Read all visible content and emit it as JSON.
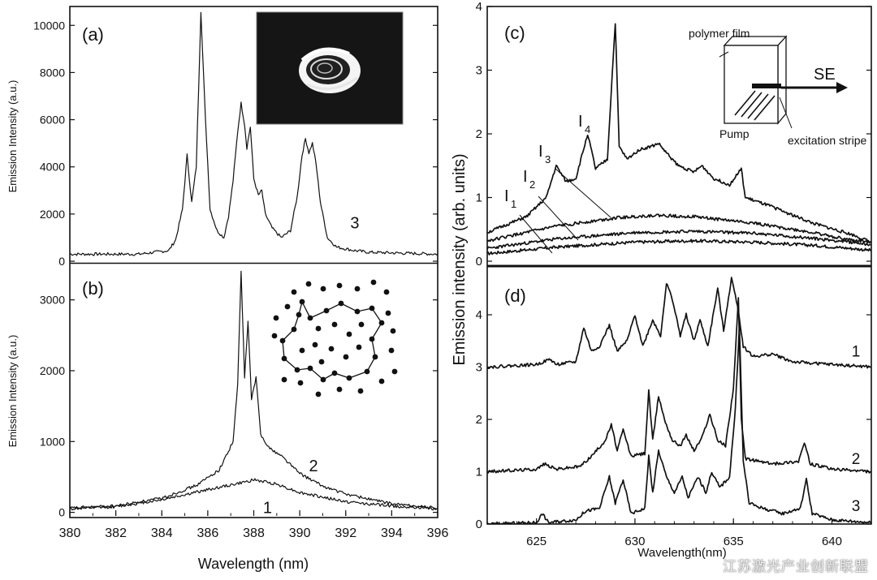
{
  "watermark": "江苏激光产业创新联盟",
  "chart_data": [
    {
      "panel": "(a)",
      "type": "line",
      "ylabel": "Emission Intensity (a.u.)",
      "xlabel": "",
      "xlim": [
        380,
        396
      ],
      "ylim": [
        0,
        10800
      ],
      "yticks": [
        0,
        2000,
        4000,
        6000,
        8000,
        10000
      ],
      "curve_labels": [
        {
          "text": "3",
          "x": 392.2,
          "y": 1400
        }
      ],
      "inset": "photo of ring-shaped emission spot",
      "series": [
        {
          "name": "3",
          "points": [
            [
              380,
              300
            ],
            [
              383,
              300
            ],
            [
              384.3,
              450
            ],
            [
              384.6,
              900
            ],
            [
              384.9,
              2200
            ],
            [
              385.1,
              4500
            ],
            [
              385.3,
              2500
            ],
            [
              385.5,
              4000
            ],
            [
              385.7,
              10600
            ],
            [
              385.9,
              6000
            ],
            [
              386.1,
              2200
            ],
            [
              386.4,
              1300
            ],
            [
              386.7,
              1000
            ],
            [
              386.9,
              1900
            ],
            [
              387.1,
              3400
            ],
            [
              387.3,
              5500
            ],
            [
              387.45,
              6700
            ],
            [
              387.6,
              5800
            ],
            [
              387.7,
              4800
            ],
            [
              387.85,
              5700
            ],
            [
              388.0,
              3500
            ],
            [
              388.2,
              2800
            ],
            [
              388.35,
              3000
            ],
            [
              388.5,
              2000
            ],
            [
              388.8,
              1400
            ],
            [
              389.2,
              1000
            ],
            [
              389.6,
              1300
            ],
            [
              389.9,
              2800
            ],
            [
              390.1,
              4500
            ],
            [
              390.25,
              5200
            ],
            [
              390.4,
              4600
            ],
            [
              390.55,
              5000
            ],
            [
              390.7,
              4200
            ],
            [
              390.9,
              2500
            ],
            [
              391.2,
              1000
            ],
            [
              391.6,
              600
            ],
            [
              392.4,
              450
            ],
            [
              393,
              380
            ],
            [
              396,
              300
            ]
          ]
        }
      ]
    },
    {
      "panel": "(b)",
      "type": "line",
      "ylabel": "Emission Intensity (a.u.)",
      "xlabel": "Wavelength (nm)",
      "xlim": [
        380,
        396
      ],
      "ylim": [
        -50,
        3500
      ],
      "xticks": [
        380,
        382,
        384,
        386,
        388,
        390,
        392,
        394,
        396
      ],
      "yticks": [
        0,
        1000,
        2000,
        3000
      ],
      "curve_labels": [
        {
          "text": "2",
          "x": 390.4,
          "y": 580
        },
        {
          "text": "1",
          "x": 388.4,
          "y": -10
        }
      ],
      "inset": "dotted random scatterer pattern with closed loop path",
      "series": [
        {
          "name": "1",
          "points": [
            [
              380,
              50
            ],
            [
              382,
              80
            ],
            [
              384,
              180
            ],
            [
              386,
              320
            ],
            [
              387.5,
              420
            ],
            [
              388,
              460
            ],
            [
              389,
              400
            ],
            [
              390,
              280
            ],
            [
              392,
              150
            ],
            [
              394,
              90
            ],
            [
              396,
              50
            ]
          ]
        },
        {
          "name": "2",
          "points": [
            [
              380,
              60
            ],
            [
              382,
              90
            ],
            [
              384,
              200
            ],
            [
              385.5,
              380
            ],
            [
              386.5,
              600
            ],
            [
              387.1,
              1000
            ],
            [
              387.3,
              1800
            ],
            [
              387.45,
              3400
            ],
            [
              387.6,
              1900
            ],
            [
              387.75,
              2700
            ],
            [
              387.9,
              1600
            ],
            [
              388.1,
              1900
            ],
            [
              388.3,
              1100
            ],
            [
              388.7,
              900
            ],
            [
              389.2,
              800
            ],
            [
              390,
              550
            ],
            [
              391,
              370
            ],
            [
              392,
              260
            ],
            [
              394,
              120
            ],
            [
              396,
              60
            ]
          ]
        }
      ]
    },
    {
      "panel": "(c)",
      "type": "line",
      "ylabel": "Emission intensity (arb. units)",
      "xlabel": "",
      "xlim": [
        622.5,
        642
      ],
      "ylim": [
        0,
        4
      ],
      "yticks": [
        0,
        1,
        2,
        3,
        4
      ],
      "inset_labels": {
        "film": "polymer film",
        "pump": "Pump",
        "stripe": "excitation stripe",
        "se": "SE"
      },
      "series": [
        {
          "name": "I1",
          "points": [
            [
              622.5,
              0.12
            ],
            [
              626,
              0.22
            ],
            [
              630,
              0.3
            ],
            [
              633,
              0.32
            ],
            [
              636,
              0.3
            ],
            [
              639,
              0.25
            ],
            [
              641,
              0.2
            ],
            [
              642,
              0.17
            ]
          ]
        },
        {
          "name": "I2",
          "points": [
            [
              622.5,
              0.2
            ],
            [
              626,
              0.35
            ],
            [
              630,
              0.45
            ],
            [
              633,
              0.47
            ],
            [
              636,
              0.44
            ],
            [
              639,
              0.36
            ],
            [
              641,
              0.3
            ],
            [
              642,
              0.26
            ]
          ]
        },
        {
          "name": "I3",
          "points": [
            [
              622.5,
              0.32
            ],
            [
              626,
              0.55
            ],
            [
              629,
              0.68
            ],
            [
              631,
              0.72
            ],
            [
              633,
              0.7
            ],
            [
              636,
              0.6
            ],
            [
              639,
              0.45
            ],
            [
              641,
              0.33
            ],
            [
              642,
              0.3
            ]
          ]
        },
        {
          "name": "I4",
          "points": [
            [
              622.5,
              0.45
            ],
            [
              624.5,
              0.7
            ],
            [
              625.5,
              1.0
            ],
            [
              626,
              1.5
            ],
            [
              626.5,
              1.25
            ],
            [
              627,
              1.3
            ],
            [
              627.6,
              2.0
            ],
            [
              628,
              1.45
            ],
            [
              628.6,
              1.6
            ],
            [
              629.0,
              3.75
            ],
            [
              629.2,
              1.8
            ],
            [
              629.6,
              1.6
            ],
            [
              630.2,
              1.75
            ],
            [
              630.8,
              1.8
            ],
            [
              631.2,
              1.85
            ],
            [
              631.6,
              1.7
            ],
            [
              632.2,
              1.5
            ],
            [
              633,
              1.4
            ],
            [
              633.4,
              1.5
            ],
            [
              634,
              1.3
            ],
            [
              634.8,
              1.2
            ],
            [
              635.4,
              1.45
            ],
            [
              635.6,
              1.0
            ],
            [
              637,
              0.85
            ],
            [
              639,
              0.6
            ],
            [
              641,
              0.42
            ],
            [
              642,
              0.3
            ]
          ]
        }
      ]
    },
    {
      "panel": "(d)",
      "type": "line",
      "ylabel": "Emission intensity (arb. units)",
      "xlabel": "Wavelength(nm)",
      "xlim": [
        622.5,
        642
      ],
      "ylim": [
        0,
        4.9
      ],
      "xticks": [
        625,
        630,
        635,
        640
      ],
      "yticks": [
        0,
        1,
        2,
        3,
        4
      ],
      "curve_labels": [
        {
          "text": "1",
          "x": 641,
          "y": 3.2
        },
        {
          "text": "2",
          "x": 641,
          "y": 1.15
        },
        {
          "text": "3",
          "x": 641,
          "y": 0.25
        }
      ],
      "series": [
        {
          "name": "1",
          "points": [
            [
              622.5,
              3.0
            ],
            [
              625,
              3.05
            ],
            [
              625.7,
              3.15
            ],
            [
              626,
              3.05
            ],
            [
              627,
              3.1
            ],
            [
              627.4,
              3.75
            ],
            [
              627.8,
              3.3
            ],
            [
              628.2,
              3.4
            ],
            [
              628.7,
              3.8
            ],
            [
              629.1,
              3.3
            ],
            [
              629.6,
              3.5
            ],
            [
              630,
              4.0
            ],
            [
              630.4,
              3.4
            ],
            [
              630.9,
              3.9
            ],
            [
              631.3,
              3.6
            ],
            [
              631.6,
              4.6
            ],
            [
              631.9,
              4.3
            ],
            [
              632.3,
              3.6
            ],
            [
              632.6,
              4.0
            ],
            [
              633,
              3.5
            ],
            [
              633.3,
              3.9
            ],
            [
              633.7,
              3.4
            ],
            [
              634.2,
              4.5
            ],
            [
              634.5,
              3.7
            ],
            [
              634.9,
              4.7
            ],
            [
              635.2,
              4.2
            ],
            [
              635.5,
              3.4
            ],
            [
              636,
              3.2
            ],
            [
              637,
              3.25
            ],
            [
              638,
              3.1
            ],
            [
              640,
              3.05
            ],
            [
              642,
              3.0
            ]
          ]
        },
        {
          "name": "2",
          "points": [
            [
              622.5,
              1.0
            ],
            [
              625,
              1.05
            ],
            [
              625.4,
              1.15
            ],
            [
              626,
              1.05
            ],
            [
              627.2,
              1.1
            ],
            [
              627.8,
              1.3
            ],
            [
              628.5,
              1.6
            ],
            [
              628.8,
              1.9
            ],
            [
              629.1,
              1.4
            ],
            [
              629.4,
              1.8
            ],
            [
              629.8,
              1.3
            ],
            [
              630.5,
              1.35
            ],
            [
              630.7,
              2.55
            ],
            [
              630.9,
              1.6
            ],
            [
              631.2,
              2.45
            ],
            [
              631.5,
              2.0
            ],
            [
              631.9,
              1.6
            ],
            [
              632.3,
              1.5
            ],
            [
              632.6,
              1.7
            ],
            [
              633,
              1.4
            ],
            [
              633.4,
              1.65
            ],
            [
              633.8,
              2.1
            ],
            [
              634.2,
              1.6
            ],
            [
              634.6,
              1.5
            ],
            [
              635.0,
              2.6
            ],
            [
              635.25,
              4.3
            ],
            [
              635.4,
              2.0
            ],
            [
              635.6,
              1.25
            ],
            [
              636.3,
              1.2
            ],
            [
              637,
              1.15
            ],
            [
              638.3,
              1.2
            ],
            [
              638.6,
              1.55
            ],
            [
              638.9,
              1.15
            ],
            [
              640,
              1.05
            ],
            [
              642,
              1.0
            ]
          ]
        },
        {
          "name": "3",
          "points": [
            [
              622.5,
              0.0
            ],
            [
              625,
              0.03
            ],
            [
              625.3,
              0.2
            ],
            [
              625.6,
              0.03
            ],
            [
              627,
              0.08
            ],
            [
              627.5,
              0.25
            ],
            [
              628.2,
              0.3
            ],
            [
              628.7,
              0.9
            ],
            [
              629.0,
              0.4
            ],
            [
              629.4,
              0.85
            ],
            [
              629.8,
              0.2
            ],
            [
              630.5,
              0.3
            ],
            [
              630.7,
              1.3
            ],
            [
              630.9,
              0.6
            ],
            [
              631.2,
              1.4
            ],
            [
              631.6,
              0.9
            ],
            [
              632,
              0.6
            ],
            [
              632.4,
              0.9
            ],
            [
              632.7,
              0.5
            ],
            [
              633.2,
              0.9
            ],
            [
              633.6,
              0.6
            ],
            [
              633.9,
              1.0
            ],
            [
              634.3,
              0.7
            ],
            [
              634.8,
              0.9
            ],
            [
              635.1,
              2.2
            ],
            [
              635.3,
              3.8
            ],
            [
              635.5,
              1.2
            ],
            [
              635.8,
              0.4
            ],
            [
              636.5,
              0.3
            ],
            [
              637.5,
              0.2
            ],
            [
              638.4,
              0.3
            ],
            [
              638.7,
              0.85
            ],
            [
              639,
              0.2
            ],
            [
              640,
              0.08
            ],
            [
              642,
              0.03
            ]
          ]
        }
      ]
    }
  ]
}
